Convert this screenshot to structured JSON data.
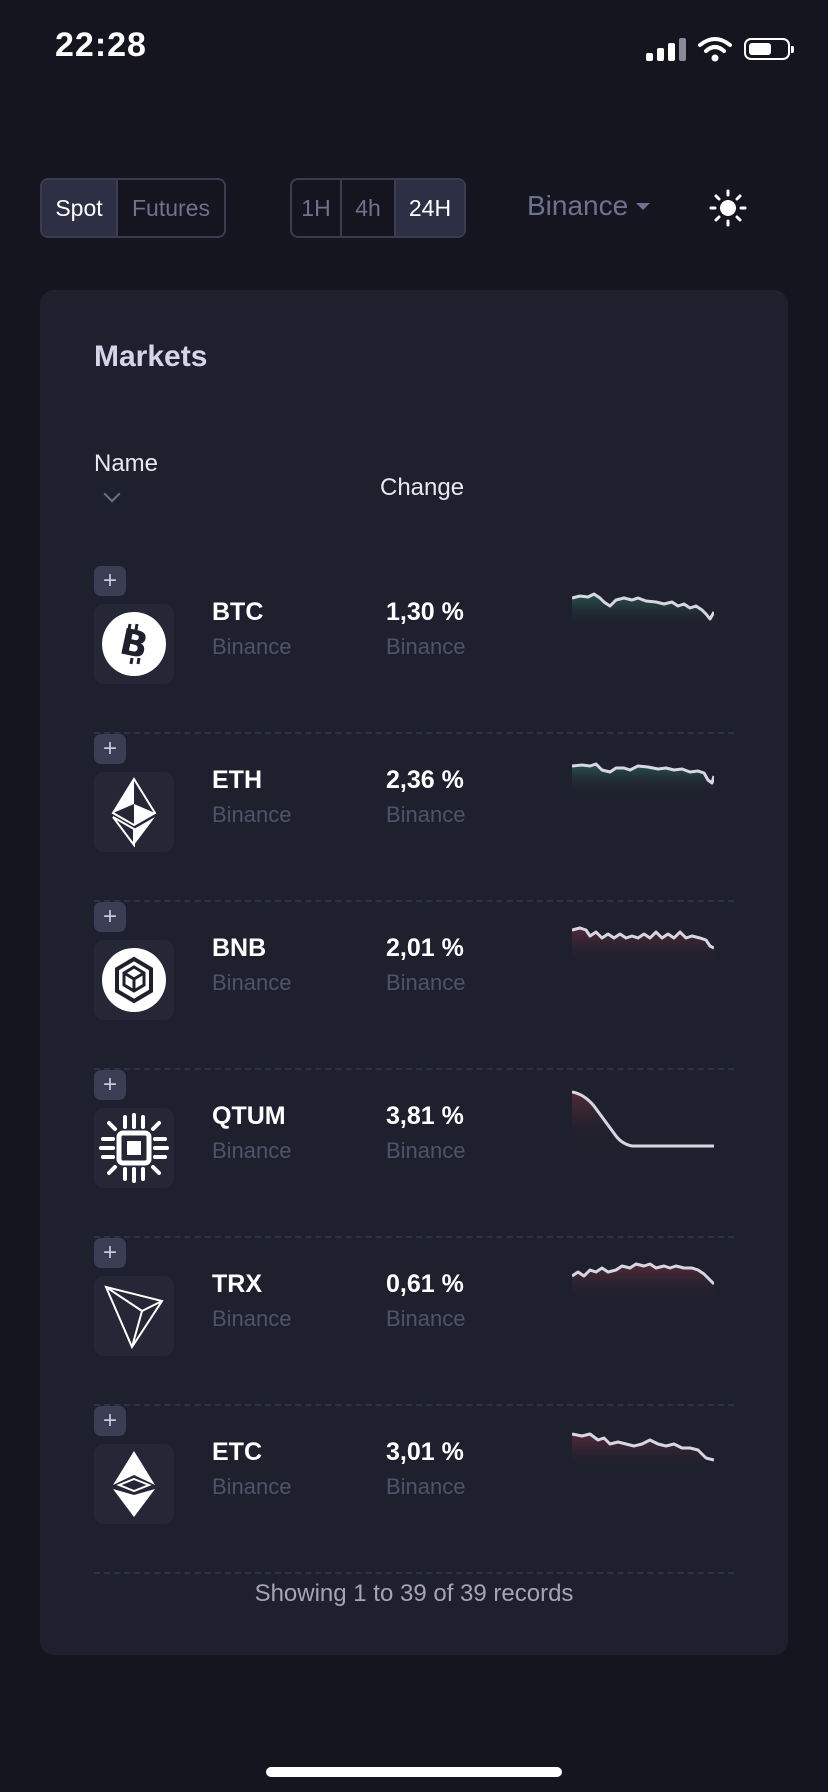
{
  "status_bar": {
    "time": "22:28"
  },
  "toolbar": {
    "market_types": [
      "Spot",
      "Futures"
    ],
    "market_active": "Spot",
    "timeframes": [
      "1H",
      "4h",
      "24H"
    ],
    "timeframe_active": "24H",
    "exchange": "Binance"
  },
  "markets": {
    "title": "Markets",
    "columns": {
      "name": "Name",
      "change": "Change"
    },
    "rows": [
      {
        "symbol": "BTC",
        "exchange": "Binance",
        "change": "1,30 %",
        "exchange2": "Binance",
        "icon": "bitcoin-icon",
        "trend": "green"
      },
      {
        "symbol": "ETH",
        "exchange": "Binance",
        "change": "2,36 %",
        "exchange2": "Binance",
        "icon": "ethereum-icon",
        "trend": "green"
      },
      {
        "symbol": "BNB",
        "exchange": "Binance",
        "change": "2,01 %",
        "exchange2": "Binance",
        "icon": "bnb-icon",
        "trend": "red"
      },
      {
        "symbol": "QTUM",
        "exchange": "Binance",
        "change": "3,81 %",
        "exchange2": "Binance",
        "icon": "qtum-icon",
        "trend": "red"
      },
      {
        "symbol": "TRX",
        "exchange": "Binance",
        "change": "0,61 %",
        "exchange2": "Binance",
        "icon": "tron-icon",
        "trend": "red"
      },
      {
        "symbol": "ETC",
        "exchange": "Binance",
        "change": "3,01 %",
        "exchange2": "Binance",
        "icon": "etc-icon",
        "trend": "red"
      }
    ],
    "records_text": "Showing 1 to 39 of 39 records"
  },
  "colors": {
    "background": "#14151f",
    "card": "#1f202d",
    "green_area": "#1d3a36",
    "red_area": "#4a2230",
    "spark_line": "#d7d7e2"
  }
}
